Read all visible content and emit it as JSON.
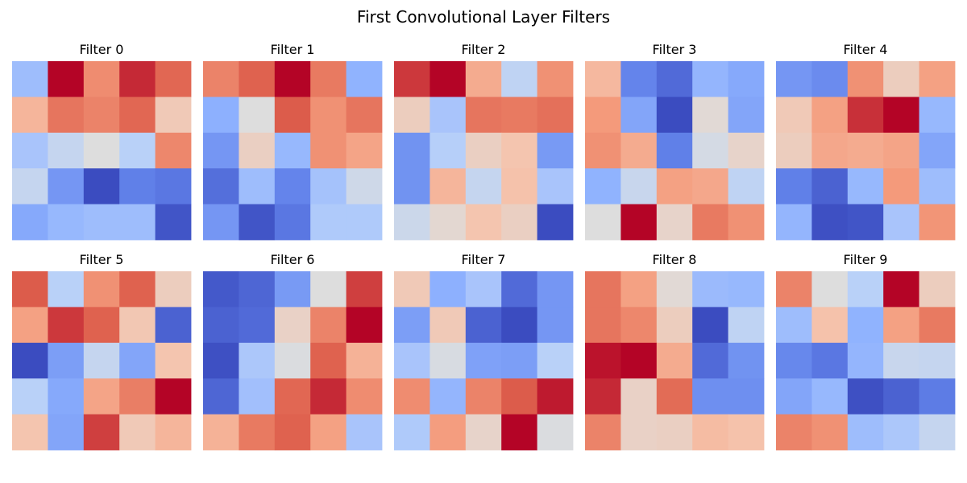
{
  "title": "First Convolutional Layer Filters",
  "chart_data": {
    "type": "heatmap",
    "colormap": "coolwarm",
    "vmin": 0,
    "vmax": 1,
    "axes": "off",
    "panels": [
      {
        "title": "Filter 0",
        "values": [
          [
            0.3,
            1.0,
            0.78,
            0.95,
            0.86
          ],
          [
            0.67,
            0.83,
            0.8,
            0.86,
            0.6
          ],
          [
            0.33,
            0.42,
            0.5,
            0.38,
            0.79
          ],
          [
            0.42,
            0.18,
            0.0,
            0.12,
            0.1
          ],
          [
            0.23,
            0.28,
            0.3,
            0.3,
            0.02
          ]
        ]
      },
      {
        "title": "Filter 1",
        "values": [
          [
            0.8,
            0.87,
            1.0,
            0.82,
            0.26
          ],
          [
            0.25,
            0.5,
            0.88,
            0.77,
            0.83
          ],
          [
            0.18,
            0.57,
            0.28,
            0.77,
            0.72
          ],
          [
            0.08,
            0.3,
            0.13,
            0.32,
            0.45
          ],
          [
            0.18,
            0.02,
            0.1,
            0.35,
            0.35
          ]
        ]
      },
      {
        "title": "Filter 2",
        "values": [
          [
            0.93,
            1.0,
            0.7,
            0.4,
            0.77
          ],
          [
            0.58,
            0.33,
            0.83,
            0.82,
            0.84
          ],
          [
            0.17,
            0.37,
            0.57,
            0.62,
            0.19
          ],
          [
            0.17,
            0.67,
            0.42,
            0.63,
            0.33
          ],
          [
            0.44,
            0.53,
            0.62,
            0.57,
            0.0
          ]
        ]
      },
      {
        "title": "Filter 3",
        "values": [
          [
            0.66,
            0.13,
            0.07,
            0.27,
            0.23
          ],
          [
            0.75,
            0.22,
            0.0,
            0.52,
            0.22
          ],
          [
            0.77,
            0.7,
            0.12,
            0.47,
            0.55
          ],
          [
            0.26,
            0.43,
            0.73,
            0.71,
            0.4
          ],
          [
            0.5,
            1.0,
            0.55,
            0.82,
            0.77
          ]
        ]
      },
      {
        "title": "Filter 4",
        "values": [
          [
            0.18,
            0.15,
            0.77,
            0.58,
            0.73
          ],
          [
            0.6,
            0.73,
            0.94,
            1.0,
            0.28
          ],
          [
            0.58,
            0.71,
            0.7,
            0.72,
            0.22
          ],
          [
            0.12,
            0.05,
            0.28,
            0.75,
            0.3
          ],
          [
            0.27,
            0.01,
            0.02,
            0.33,
            0.76
          ]
        ]
      },
      {
        "title": "Filter 5",
        "values": [
          [
            0.88,
            0.38,
            0.77,
            0.87,
            0.58
          ],
          [
            0.73,
            0.93,
            0.87,
            0.61,
            0.05
          ],
          [
            0.0,
            0.2,
            0.42,
            0.22,
            0.62
          ],
          [
            0.38,
            0.23,
            0.72,
            0.81,
            1.0
          ],
          [
            0.62,
            0.22,
            0.92,
            0.6,
            0.67
          ]
        ]
      },
      {
        "title": "Filter 6",
        "values": [
          [
            0.03,
            0.06,
            0.19,
            0.5,
            0.92
          ],
          [
            0.05,
            0.07,
            0.56,
            0.8,
            1.0
          ],
          [
            0.01,
            0.34,
            0.49,
            0.87,
            0.68
          ],
          [
            0.06,
            0.31,
            0.86,
            0.95,
            0.78
          ],
          [
            0.68,
            0.82,
            0.87,
            0.73,
            0.33
          ]
        ]
      },
      {
        "title": "Filter 7",
        "values": [
          [
            0.6,
            0.25,
            0.33,
            0.07,
            0.18
          ],
          [
            0.2,
            0.6,
            0.05,
            0.0,
            0.18
          ],
          [
            0.33,
            0.48,
            0.21,
            0.2,
            0.38
          ],
          [
            0.78,
            0.27,
            0.8,
            0.88,
            0.97
          ],
          [
            0.35,
            0.74,
            0.55,
            1.0,
            0.49
          ]
        ]
      },
      {
        "title": "Filter 8",
        "values": [
          [
            0.83,
            0.73,
            0.52,
            0.29,
            0.28
          ],
          [
            0.83,
            0.79,
            0.58,
            0.0,
            0.4
          ],
          [
            0.98,
            1.0,
            0.7,
            0.07,
            0.17
          ],
          [
            0.95,
            0.56,
            0.85,
            0.16,
            0.16
          ],
          [
            0.8,
            0.56,
            0.57,
            0.65,
            0.63
          ]
        ]
      },
      {
        "title": "Filter 9",
        "values": [
          [
            0.8,
            0.5,
            0.38,
            1.0,
            0.58
          ],
          [
            0.3,
            0.63,
            0.26,
            0.73,
            0.82
          ],
          [
            0.14,
            0.1,
            0.27,
            0.43,
            0.42
          ],
          [
            0.22,
            0.28,
            0.01,
            0.05,
            0.11
          ],
          [
            0.8,
            0.77,
            0.3,
            0.34,
            0.42
          ]
        ]
      }
    ]
  }
}
